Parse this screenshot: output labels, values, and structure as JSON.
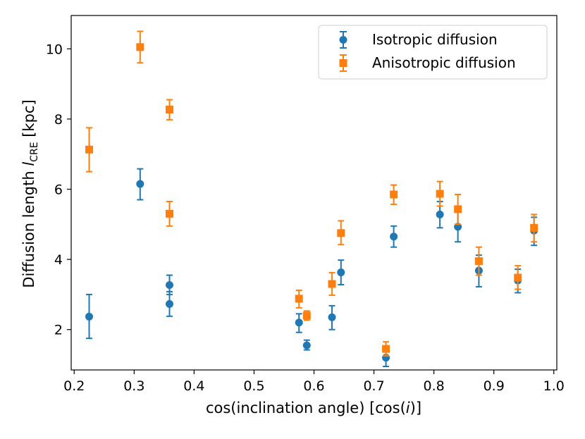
{
  "chart_data": {
    "type": "scatter",
    "xlabel": "cos(inclination angle) [cos(i)]",
    "xlabel_parts": {
      "before": "cos(inclination angle) [cos(",
      "italic": "i",
      "after": ")]"
    },
    "ylabel": "Diffusion length l_CRE [kpc]",
    "ylabel_parts": {
      "main": "Diffusion length ",
      "symbol": "l",
      "subscript": "CRE",
      "unit": " [kpc]"
    },
    "xlim": [
      0.195,
      1.005
    ],
    "ylim": [
      0.85,
      10.95
    ],
    "x_ticks": [
      0.2,
      0.3,
      0.4,
      0.5,
      0.6,
      0.7,
      0.8,
      0.9,
      1.0
    ],
    "x_tick_labels": [
      "0.2",
      "0.3",
      "0.4",
      "0.5",
      "0.6",
      "0.7",
      "0.8",
      "0.9",
      "1.0"
    ],
    "y_ticks": [
      2,
      4,
      6,
      8,
      10
    ],
    "y_tick_labels": [
      "2",
      "4",
      "6",
      "8",
      "10"
    ],
    "legend_position": "upper right",
    "series": [
      {
        "name": "Isotropic diffusion",
        "marker": "circle",
        "color": "#1f77b4",
        "points": [
          {
            "x": 0.225,
            "y": 2.37,
            "lo": 1.75,
            "hi": 3.0
          },
          {
            "x": 0.31,
            "y": 6.15,
            "lo": 5.7,
            "hi": 6.58
          },
          {
            "x": 0.359,
            "y": 3.27,
            "lo": 3.0,
            "hi": 3.55
          },
          {
            "x": 0.359,
            "y": 2.73,
            "lo": 2.38,
            "hi": 3.08
          },
          {
            "x": 0.575,
            "y": 2.2,
            "lo": 1.92,
            "hi": 2.45
          },
          {
            "x": 0.588,
            "y": 1.55,
            "lo": 1.42,
            "hi": 1.7
          },
          {
            "x": 0.63,
            "y": 2.35,
            "lo": 2.0,
            "hi": 2.68
          },
          {
            "x": 0.645,
            "y": 3.63,
            "lo": 3.28,
            "hi": 3.98
          },
          {
            "x": 0.72,
            "y": 1.2,
            "lo": 0.95,
            "hi": 1.42
          },
          {
            "x": 0.733,
            "y": 4.65,
            "lo": 4.35,
            "hi": 4.95
          },
          {
            "x": 0.81,
            "y": 5.28,
            "lo": 4.9,
            "hi": 5.65
          },
          {
            "x": 0.84,
            "y": 4.93,
            "lo": 4.5,
            "hi": 5.35
          },
          {
            "x": 0.875,
            "y": 3.68,
            "lo": 3.22,
            "hi": 4.12
          },
          {
            "x": 0.94,
            "y": 3.4,
            "lo": 3.05,
            "hi": 3.72
          },
          {
            "x": 0.967,
            "y": 4.82,
            "lo": 4.4,
            "hi": 5.2
          }
        ]
      },
      {
        "name": "Anisotropic diffusion",
        "marker": "square",
        "color": "#ff7f0e",
        "points": [
          {
            "x": 0.225,
            "y": 7.13,
            "lo": 6.5,
            "hi": 7.75
          },
          {
            "x": 0.31,
            "y": 10.05,
            "lo": 9.6,
            "hi": 10.5
          },
          {
            "x": 0.359,
            "y": 8.27,
            "lo": 7.98,
            "hi": 8.55
          },
          {
            "x": 0.359,
            "y": 5.3,
            "lo": 4.95,
            "hi": 5.65
          },
          {
            "x": 0.575,
            "y": 2.88,
            "lo": 2.62,
            "hi": 3.12
          },
          {
            "x": 0.588,
            "y": 2.4,
            "lo": 2.27,
            "hi": 2.53
          },
          {
            "x": 0.63,
            "y": 3.3,
            "lo": 2.98,
            "hi": 3.62
          },
          {
            "x": 0.645,
            "y": 4.75,
            "lo": 4.42,
            "hi": 5.1
          },
          {
            "x": 0.72,
            "y": 1.45,
            "lo": 1.25,
            "hi": 1.65
          },
          {
            "x": 0.733,
            "y": 5.85,
            "lo": 5.57,
            "hi": 6.12
          },
          {
            "x": 0.81,
            "y": 5.87,
            "lo": 5.52,
            "hi": 6.22
          },
          {
            "x": 0.84,
            "y": 5.43,
            "lo": 5.0,
            "hi": 5.85
          },
          {
            "x": 0.875,
            "y": 3.95,
            "lo": 3.55,
            "hi": 4.35
          },
          {
            "x": 0.94,
            "y": 3.48,
            "lo": 3.15,
            "hi": 3.82
          },
          {
            "x": 0.967,
            "y": 4.9,
            "lo": 4.5,
            "hi": 5.28
          }
        ]
      }
    ]
  }
}
